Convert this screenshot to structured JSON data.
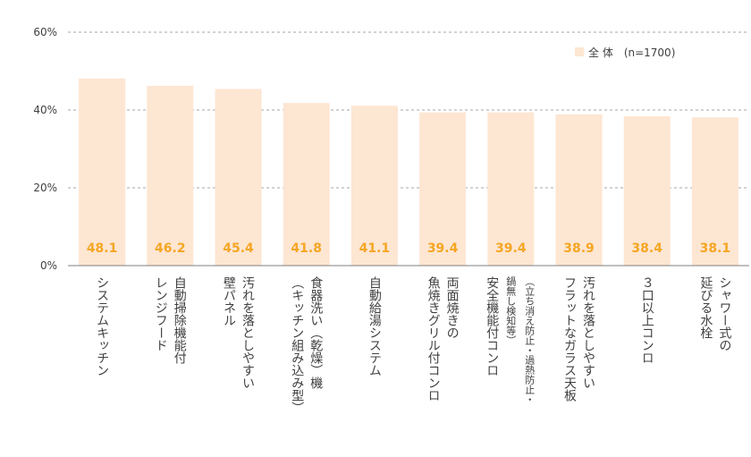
{
  "chart_data": {
    "type": "bar",
    "categories": [
      [
        "システムキッチン"
      ],
      [
        "自動掃除機能付",
        "レンジフード"
      ],
      [
        "汚れを落としやすい",
        "壁パネル"
      ],
      [
        "食器洗い（乾燥）機",
        "（キッチン組み込み型）"
      ],
      [
        "自動給湯システム"
      ],
      [
        "両面焼きの",
        "魚焼きグリル付コンロ"
      ],
      [
        "（立ち消え防止・過熱防止・",
        "鍋無し検知等）",
        "安全機能付コンロ"
      ],
      [
        "汚れを落としやすい",
        "フラットなガラス天板"
      ],
      [
        "３口以上コンロ"
      ],
      [
        "シャワー式の",
        "延びる水栓"
      ]
    ],
    "series": [
      {
        "name": "全 体　(n=1700)",
        "values": [
          48.1,
          46.2,
          45.4,
          41.8,
          41.1,
          39.4,
          39.4,
          38.9,
          38.4,
          38.1
        ]
      }
    ],
    "value_labels": [
      "48.1",
      "46.2",
      "45.4",
      "41.8",
      "41.1",
      "39.4",
      "39.4",
      "38.9",
      "38.4",
      "38.1"
    ],
    "yticks": [
      "0%",
      "20%",
      "40%",
      "60%"
    ],
    "ylim": [
      0,
      60
    ],
    "grid": true,
    "legend_position": "top-right",
    "colors": {
      "bar": "#fde6d2",
      "value_label": "#f5a623",
      "grid": "#a6a6a6",
      "text": "#404040",
      "axis": "#7f7f7f"
    }
  }
}
